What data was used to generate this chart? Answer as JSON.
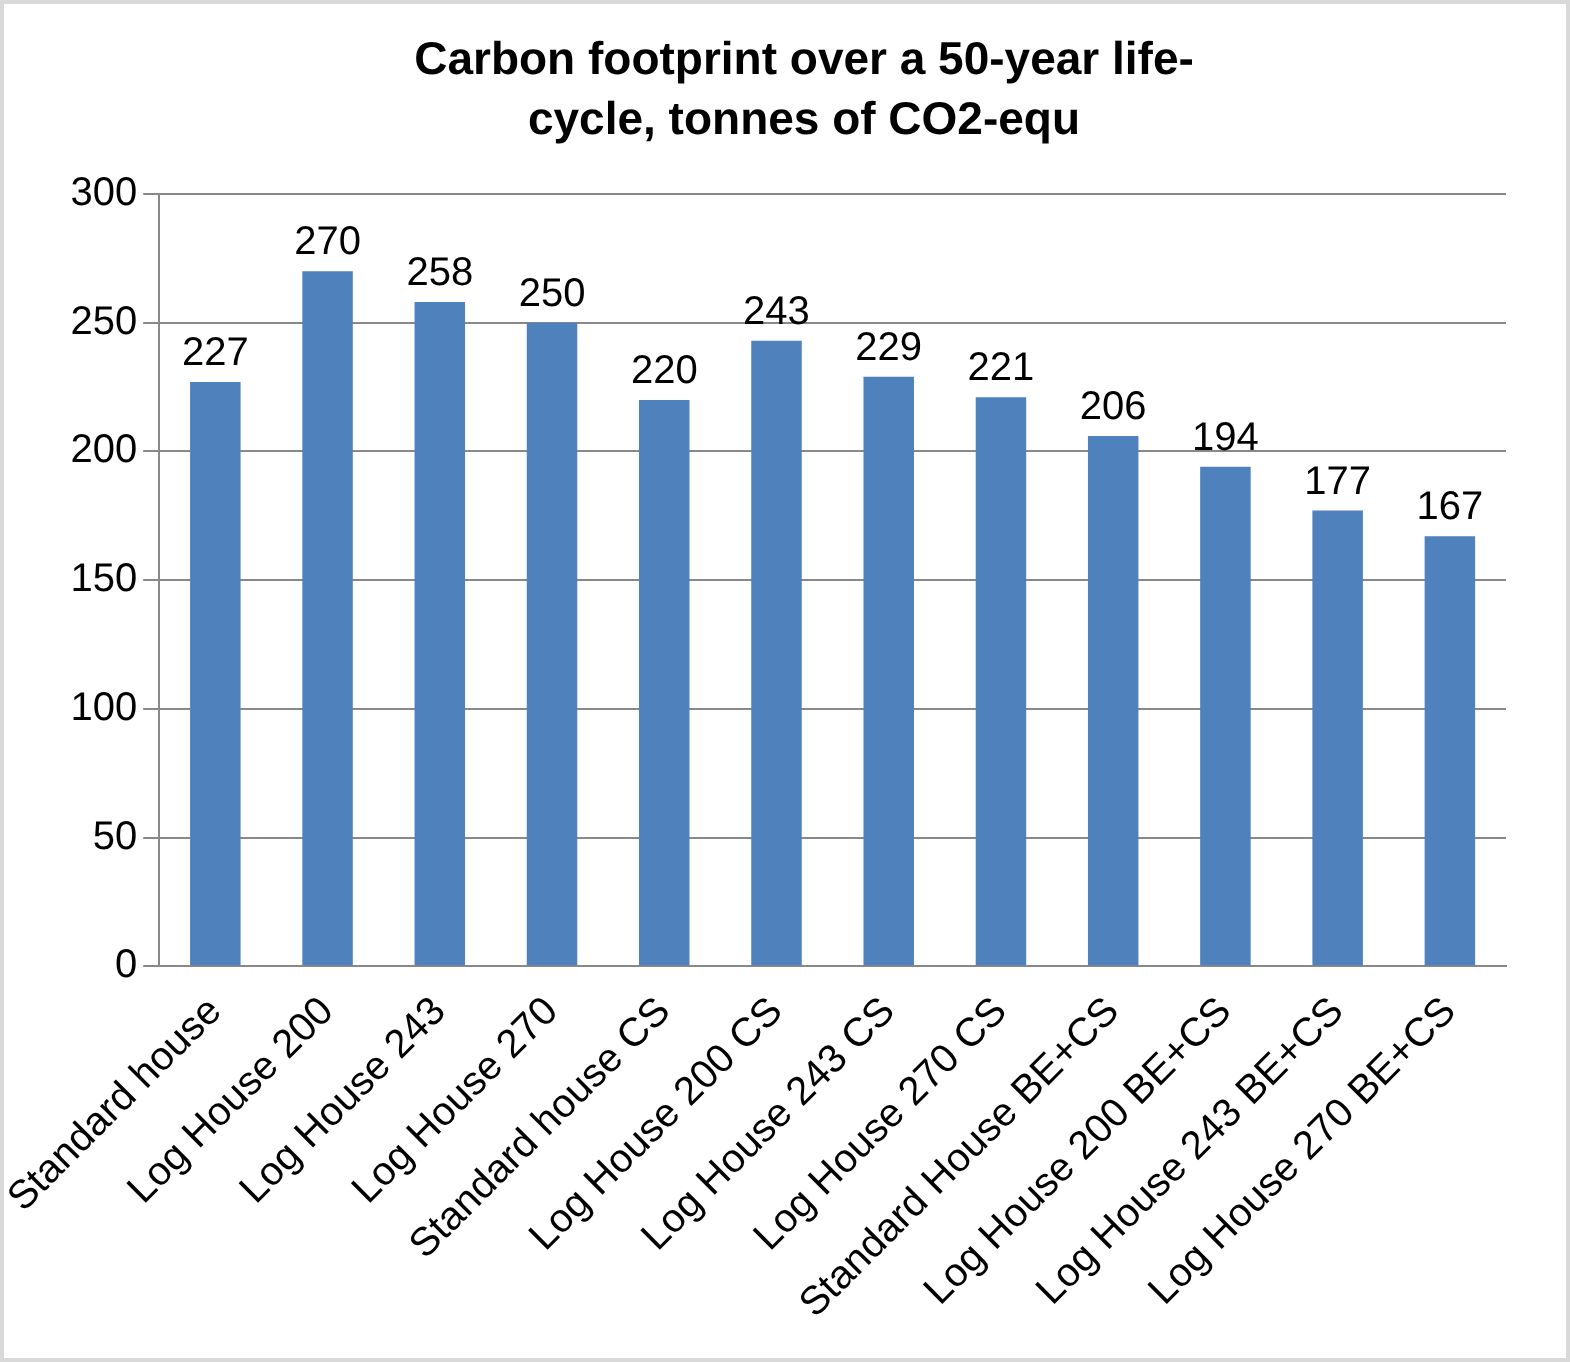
{
  "chart_data": {
    "type": "bar",
    "title": "Carbon footprint over a 50-year life-cycle, tonnes of CO2-equ",
    "categories": [
      "Standard house",
      "Log House 200",
      "Log House 243",
      "Log House 270",
      "Standard house CS",
      "Log House 200 CS",
      "Log House 243 CS",
      "Log House 270 CS",
      "Standard House BE+CS",
      "Log House 200 BE+CS",
      "Log House 243 BE+CS",
      "Log House 270 BE+CS"
    ],
    "values": [
      227,
      270,
      258,
      250,
      220,
      243,
      229,
      221,
      206,
      194,
      177,
      167
    ],
    "color": "#4f81bd",
    "ylim": [
      0,
      300
    ],
    "yticks": [
      0,
      50,
      100,
      150,
      200,
      250,
      300
    ],
    "grid": "y",
    "legend": false,
    "data_labels": true
  }
}
